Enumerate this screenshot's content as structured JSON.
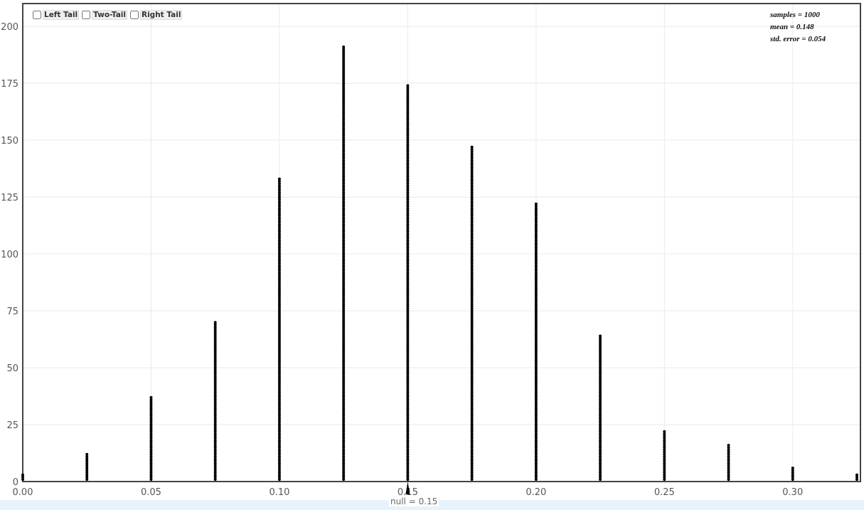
{
  "chart_data": {
    "type": "scatter",
    "subtype": "dotplot",
    "x": [
      0.0,
      0.025,
      0.05,
      0.075,
      0.1,
      0.125,
      0.15,
      0.175,
      0.2,
      0.225,
      0.25,
      0.275,
      0.3,
      0.325
    ],
    "counts": [
      3,
      12,
      37,
      70,
      133,
      191,
      174,
      147,
      122,
      64,
      22,
      16,
      6,
      3
    ],
    "xlim": [
      0,
      0.325
    ],
    "ylim": [
      0,
      205
    ],
    "xticks": [
      "0.00",
      "0.05",
      "0.10",
      "0.15",
      "0.20",
      "0.25",
      "0.30"
    ],
    "yticks": [
      "0",
      "25",
      "50",
      "75",
      "100",
      "125",
      "150",
      "175",
      "200"
    ],
    "grid": true,
    "dot_color": "#000000",
    "stats": [
      "samples = 1000",
      "mean = 0.148",
      "std. error = 0.054"
    ],
    "null_label": "null = 0.15",
    "null_value": 0.15
  },
  "controls": {
    "tails": [
      {
        "label": "Left Tail",
        "checked": false
      },
      {
        "label": "Two-Tail",
        "checked": false
      },
      {
        "label": "Right Tail",
        "checked": false
      }
    ]
  }
}
